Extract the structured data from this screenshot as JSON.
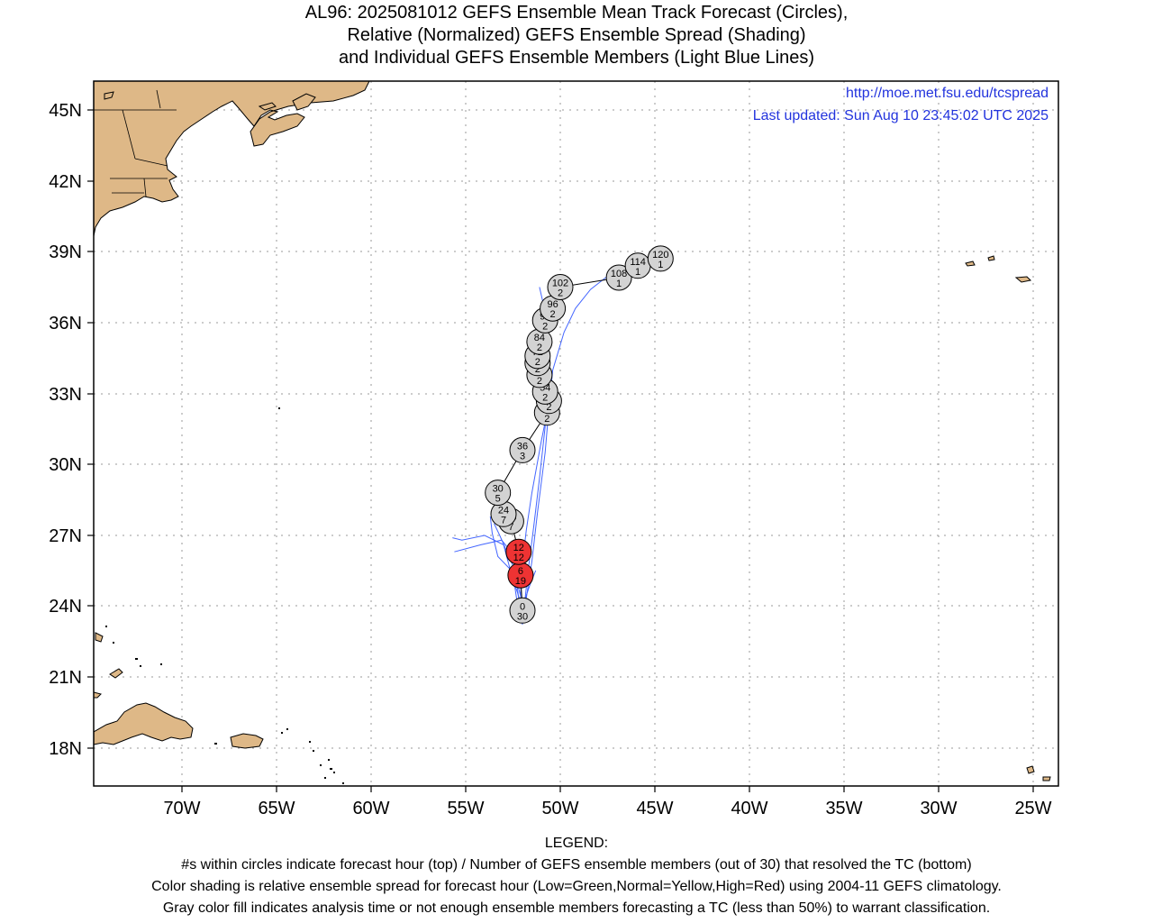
{
  "title": {
    "line1": "AL96: 2025081012 GEFS Ensemble Mean Track Forecast (Circles),",
    "line2": "Relative (Normalized) GEFS Ensemble Spread (Shading)",
    "line3": "and Individual GEFS Ensemble Members (Light Blue Lines)"
  },
  "header_info": {
    "url": "http://moe.met.fsu.edu/tcspread",
    "updated": "Last updated: Sun Aug 10 23:45:02 UTC 2025"
  },
  "axes": {
    "lat_labels": [
      "45N",
      "42N",
      "39N",
      "36N",
      "33N",
      "30N",
      "27N",
      "24N",
      "21N",
      "18N"
    ],
    "lon_labels": [
      "70W",
      "65W",
      "60W",
      "55W",
      "50W",
      "45W",
      "40W",
      "35W",
      "30W",
      "25W"
    ]
  },
  "track_points": [
    {
      "hour": "0",
      "members": "30",
      "lon": -52.0,
      "lat": 23.8,
      "spread": "gray"
    },
    {
      "hour": "6",
      "members": "19",
      "lon": -52.1,
      "lat": 25.3,
      "spread": "red"
    },
    {
      "hour": "12",
      "members": "12",
      "lon": -52.2,
      "lat": 26.3,
      "spread": "red"
    },
    {
      "hour": "18",
      "members": "7",
      "lon": -52.6,
      "lat": 27.6,
      "spread": "gray"
    },
    {
      "hour": "24",
      "members": "7",
      "lon": -53.0,
      "lat": 27.9,
      "spread": "gray"
    },
    {
      "hour": "30",
      "members": "5",
      "lon": -53.3,
      "lat": 28.8,
      "spread": "gray"
    },
    {
      "hour": "36",
      "members": "3",
      "lon": -52.0,
      "lat": 30.6,
      "spread": "gray"
    },
    {
      "hour": "42",
      "members": "2",
      "lon": -50.7,
      "lat": 32.2,
      "spread": "gray"
    },
    {
      "hour": "48",
      "members": "2",
      "lon": -50.6,
      "lat": 32.7,
      "spread": "gray"
    },
    {
      "hour": "54",
      "members": "2",
      "lon": -50.8,
      "lat": 33.1,
      "spread": "gray"
    },
    {
      "hour": "60",
      "members": "2",
      "lon": -51.1,
      "lat": 33.8,
      "spread": "gray"
    },
    {
      "hour": "66",
      "members": "2",
      "lon": -51.2,
      "lat": 34.3,
      "spread": "gray"
    },
    {
      "hour": "72",
      "members": "2",
      "lon": -51.2,
      "lat": 34.6,
      "spread": "gray"
    },
    {
      "hour": "84",
      "members": "2",
      "lon": -51.1,
      "lat": 35.2,
      "spread": "gray"
    },
    {
      "hour": "90",
      "members": "2",
      "lon": -50.8,
      "lat": 36.1,
      "spread": "gray"
    },
    {
      "hour": "96",
      "members": "2",
      "lon": -50.4,
      "lat": 36.6,
      "spread": "gray"
    },
    {
      "hour": "102",
      "members": "2",
      "lon": -50.0,
      "lat": 37.5,
      "spread": "gray"
    },
    {
      "hour": "108",
      "members": "1",
      "lon": -46.9,
      "lat": 37.9,
      "spread": "gray"
    },
    {
      "hour": "114",
      "members": "1",
      "lon": -45.9,
      "lat": 38.4,
      "spread": "gray"
    },
    {
      "hour": "120",
      "members": "1",
      "lon": -44.7,
      "lat": 38.7,
      "spread": "gray"
    }
  ],
  "colors": {
    "land": "#deb887",
    "gray_circle": "#d3d3d3",
    "red_circle": "#ee3333",
    "member_line": "#4466ff",
    "url_text": "#2233dd"
  },
  "legend": {
    "heading": "LEGEND:",
    "line1": "#s within circles indicate forecast hour (top) / Number of GEFS ensemble members (out of 30) that resolved the TC (bottom)",
    "line2": "Color shading is relative ensemble spread for forecast hour (Low=Green,Normal=Yellow,High=Red) using 2004-11 GEFS climatology.",
    "line3": "Gray color fill indicates analysis time or not enough ensemble members forecasting a TC (less than 50%) to warrant classification."
  }
}
